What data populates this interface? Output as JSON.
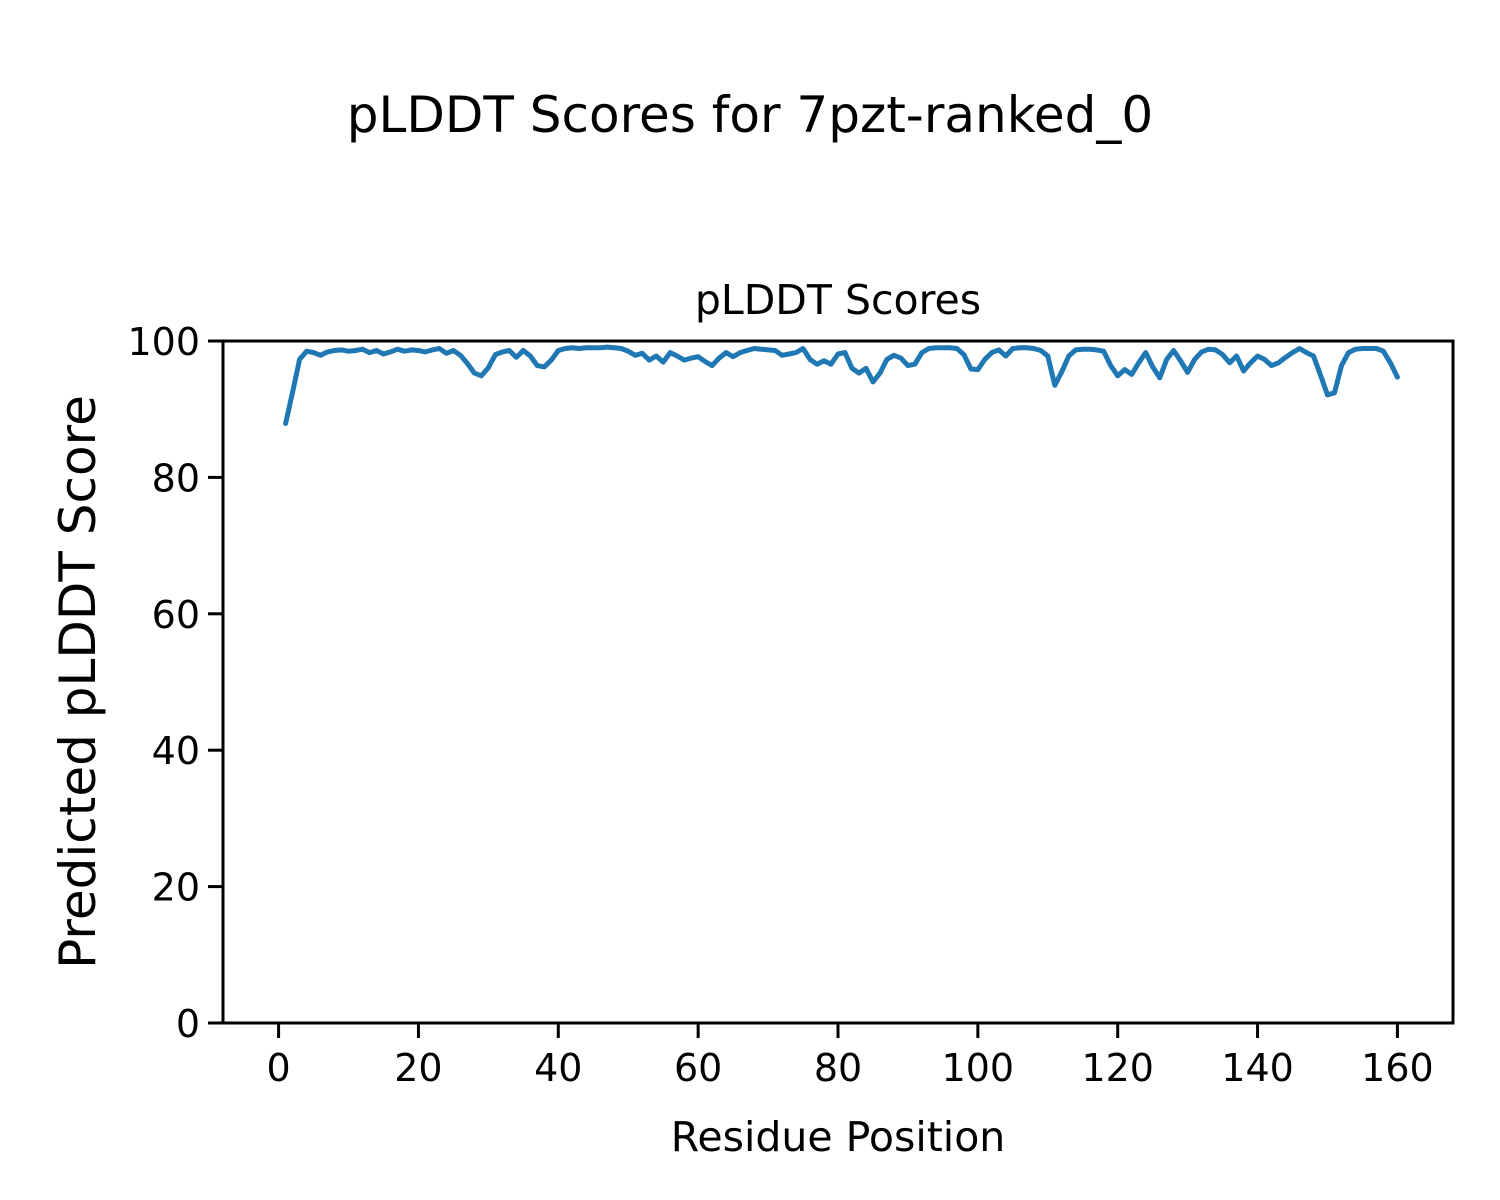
{
  "suptitle": "pLDDT Scores for 7pzt-ranked_0",
  "colors": {
    "line": "#1f77b4",
    "axes": "#000000",
    "background": "#ffffff"
  },
  "chart_data": {
    "type": "line",
    "title": "pLDDT Scores",
    "xlabel": "Residue Position",
    "ylabel": "Predicted pLDDT Score",
    "xlim": [
      -7.95,
      167.95
    ],
    "ylim": [
      0,
      100
    ],
    "xticks": [
      0,
      20,
      40,
      60,
      80,
      100,
      120,
      140,
      160
    ],
    "yticks": [
      0,
      20,
      40,
      60,
      80,
      100
    ],
    "grid": false,
    "legend": "none",
    "series": [
      {
        "name": "pLDDT",
        "color": "#1f77b4",
        "x": [
          1,
          2,
          3,
          4,
          5,
          6,
          7,
          8,
          9,
          10,
          11,
          12,
          13,
          14,
          15,
          16,
          17,
          18,
          19,
          20,
          21,
          22,
          23,
          24,
          25,
          26,
          27,
          28,
          29,
          30,
          31,
          32,
          33,
          34,
          35,
          36,
          37,
          38,
          39,
          40,
          41,
          42,
          43,
          44,
          45,
          46,
          47,
          48,
          49,
          50,
          51,
          52,
          53,
          54,
          55,
          56,
          57,
          58,
          59,
          60,
          61,
          62,
          63,
          64,
          65,
          66,
          67,
          68,
          69,
          70,
          71,
          72,
          73,
          74,
          75,
          76,
          77,
          78,
          79,
          80,
          81,
          82,
          83,
          84,
          85,
          86,
          87,
          88,
          89,
          90,
          91,
          92,
          93,
          94,
          95,
          96,
          97,
          98,
          99,
          100,
          101,
          102,
          103,
          104,
          105,
          106,
          107,
          108,
          109,
          110,
          111,
          112,
          113,
          114,
          115,
          116,
          117,
          118,
          119,
          120,
          121,
          122,
          123,
          124,
          125,
          126,
          127,
          128,
          129,
          130,
          131,
          132,
          133,
          134,
          135,
          136,
          137,
          138,
          139,
          140,
          141,
          142,
          143,
          144,
          145,
          146,
          147,
          148,
          149,
          150,
          151,
          152,
          153,
          154,
          155,
          156,
          157,
          158,
          159,
          160
        ],
        "values": [
          87.9,
          92.5,
          97.3,
          98.5,
          98.3,
          97.9,
          98.4,
          98.6,
          98.7,
          98.5,
          98.6,
          98.8,
          98.3,
          98.6,
          98.1,
          98.4,
          98.8,
          98.5,
          98.7,
          98.6,
          98.4,
          98.7,
          98.9,
          98.2,
          98.6,
          97.9,
          96.7,
          95.3,
          94.9,
          96.1,
          98.0,
          98.4,
          98.6,
          97.6,
          98.6,
          97.8,
          96.4,
          96.2,
          97.2,
          98.6,
          98.9,
          99.0,
          98.9,
          99.0,
          99.0,
          99.0,
          99.1,
          99.0,
          98.9,
          98.5,
          97.9,
          98.2,
          97.2,
          97.8,
          96.9,
          98.3,
          97.8,
          97.2,
          97.5,
          97.7,
          97.0,
          96.4,
          97.5,
          98.3,
          97.7,
          98.3,
          98.6,
          98.9,
          98.8,
          98.7,
          98.6,
          97.9,
          98.1,
          98.3,
          98.9,
          97.3,
          96.6,
          97.1,
          96.6,
          98.1,
          98.3,
          96.0,
          95.3,
          96.0,
          94.0,
          95.3,
          97.3,
          97.9,
          97.5,
          96.4,
          96.6,
          98.3,
          98.9,
          99.0,
          99.0,
          99.0,
          98.9,
          98.0,
          95.9,
          95.8,
          97.3,
          98.3,
          98.7,
          97.8,
          98.9,
          99.0,
          99.0,
          98.9,
          98.6,
          97.8,
          93.5,
          95.5,
          97.8,
          98.7,
          98.8,
          98.8,
          98.7,
          98.5,
          96.4,
          94.9,
          95.8,
          95.1,
          96.8,
          98.3,
          96.2,
          94.6,
          97.3,
          98.6,
          97.1,
          95.4,
          97.3,
          98.4,
          98.8,
          98.7,
          98.0,
          96.8,
          97.8,
          95.6,
          96.8,
          97.8,
          97.3,
          96.4,
          96.8,
          97.6,
          98.3,
          98.9,
          98.3,
          97.8,
          95.0,
          92.1,
          92.4,
          96.4,
          98.3,
          98.8,
          98.9,
          98.9,
          98.9,
          98.5,
          96.8,
          94.7
        ]
      }
    ]
  }
}
